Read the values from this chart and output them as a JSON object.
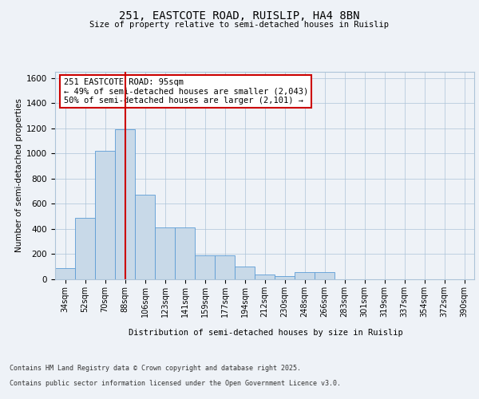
{
  "title_line1": "251, EASTCOTE ROAD, RUISLIP, HA4 8BN",
  "title_line2": "Size of property relative to semi-detached houses in Ruislip",
  "xlabel": "Distribution of semi-detached houses by size in Ruislip",
  "ylabel": "Number of semi-detached properties",
  "categories": [
    "34sqm",
    "52sqm",
    "70sqm",
    "88sqm",
    "106sqm",
    "123sqm",
    "141sqm",
    "159sqm",
    "177sqm",
    "194sqm",
    "212sqm",
    "230sqm",
    "248sqm",
    "266sqm",
    "283sqm",
    "301sqm",
    "319sqm",
    "337sqm",
    "354sqm",
    "372sqm",
    "390sqm"
  ],
  "values": [
    90,
    490,
    1020,
    1190,
    670,
    415,
    415,
    190,
    190,
    100,
    35,
    25,
    60,
    60,
    0,
    0,
    0,
    0,
    0,
    0,
    0
  ],
  "bar_color": "#c8d9e8",
  "bar_edge_color": "#5b9bd5",
  "vline_x": 3,
  "vline_color": "#cc0000",
  "annotation_title": "251 EASTCOTE ROAD: 95sqm",
  "annotation_line1": "← 49% of semi-detached houses are smaller (2,043)",
  "annotation_line2": "50% of semi-detached houses are larger (2,101) →",
  "annotation_box_color": "#cc0000",
  "ylim": [
    0,
    1650
  ],
  "yticks": [
    0,
    200,
    400,
    600,
    800,
    1000,
    1200,
    1400,
    1600
  ],
  "footer_line1": "Contains HM Land Registry data © Crown copyright and database right 2025.",
  "footer_line2": "Contains public sector information licensed under the Open Government Licence v3.0.",
  "background_color": "#eef2f7",
  "plot_bg_color": "#eef2f7"
}
